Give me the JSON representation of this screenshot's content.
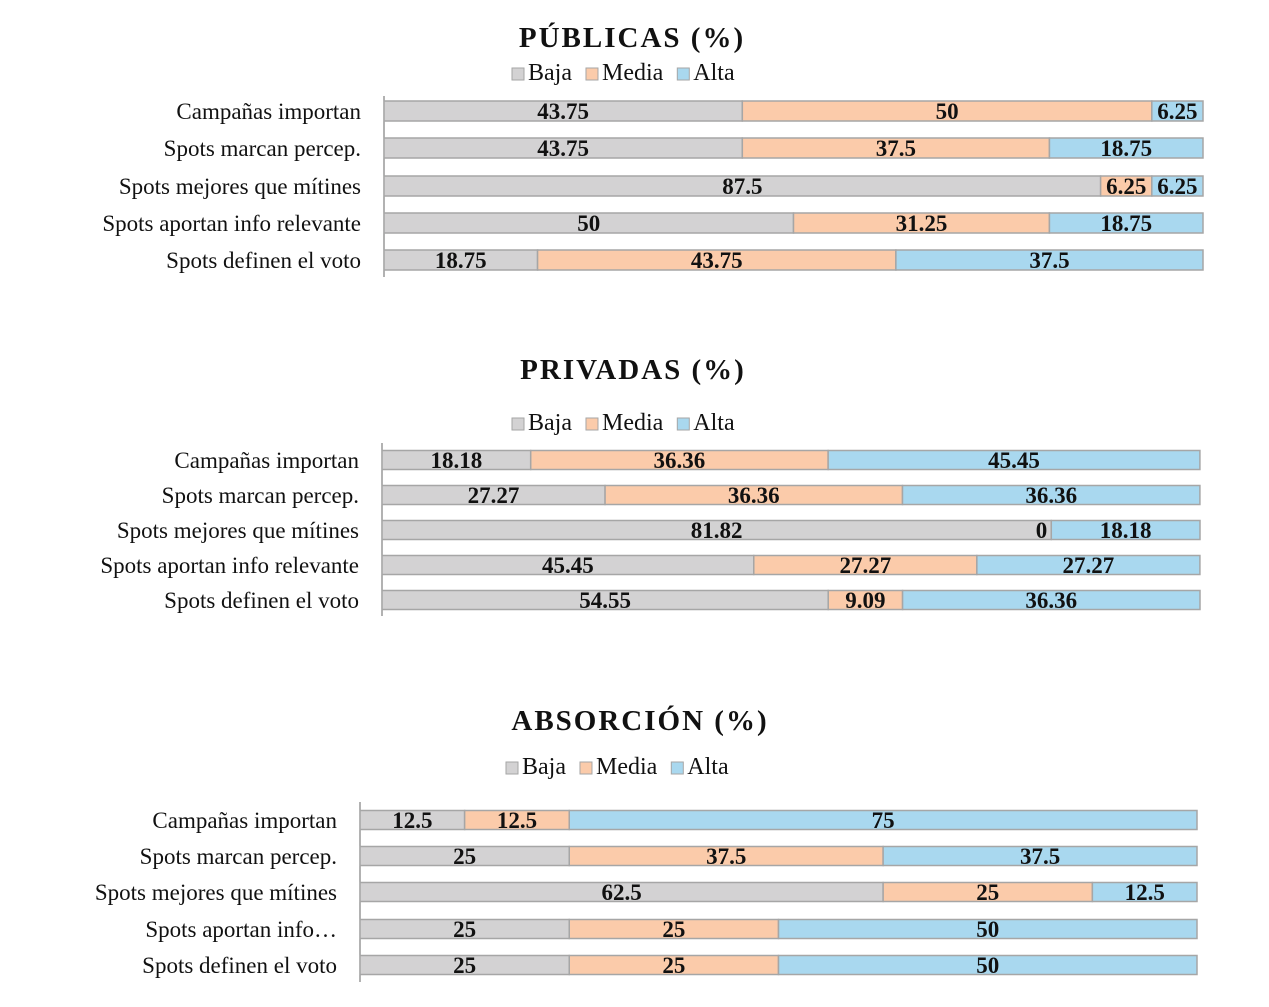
{
  "colors": {
    "Baja": "#d3d2d3",
    "Media": "#fbcbaa",
    "Alta": "#a9d8ef",
    "stroke": "#a6a6a6",
    "axis": "#7f7f7f"
  },
  "chart_data": [
    {
      "type": "bar",
      "stacked": true,
      "orientation": "horizontal",
      "title": "PÚBLICAS (%)",
      "legend": [
        "Baja",
        "Media",
        "Alta"
      ],
      "legend_position": "top",
      "categories": [
        "Campañas importan",
        "Spots marcan percep.",
        "Spots mejores que mítines",
        "Spots aportan info relevante",
        "Spots definen el voto"
      ],
      "series": [
        {
          "name": "Baja",
          "values": [
            43.75,
            43.75,
            87.5,
            50,
            18.75
          ],
          "labels": [
            "43.75",
            "43.75",
            "87.5",
            "50",
            "18.75"
          ]
        },
        {
          "name": "Media",
          "values": [
            50,
            37.5,
            6.25,
            31.25,
            43.75
          ],
          "labels": [
            "50",
            "37.5",
            "6.25",
            "31.25",
            "43.75"
          ]
        },
        {
          "name": "Alta",
          "values": [
            6.25,
            18.75,
            6.25,
            18.75,
            37.5
          ],
          "labels": [
            "6.25",
            "18.75",
            "6.25",
            "18.75",
            "37.5"
          ]
        }
      ],
      "xlim": [
        0,
        100
      ]
    },
    {
      "type": "bar",
      "stacked": true,
      "orientation": "horizontal",
      "title": "PRIVADAS (%)",
      "legend": [
        "Baja",
        "Media",
        "Alta"
      ],
      "legend_position": "top",
      "categories": [
        "Campañas importan",
        "Spots marcan percep.",
        "Spots mejores que mítines",
        "Spots aportan info relevante",
        "Spots definen el voto"
      ],
      "series": [
        {
          "name": "Baja",
          "values": [
            18.18,
            27.27,
            81.82,
            45.45,
            54.55
          ],
          "labels": [
            "18.18",
            "27.27",
            "81.82",
            "45.45",
            "54.55"
          ]
        },
        {
          "name": "Media",
          "values": [
            36.36,
            36.36,
            0,
            27.27,
            9.09
          ],
          "labels": [
            "36.36",
            "36.36",
            "0",
            "27.27",
            "9.09"
          ]
        },
        {
          "name": "Alta",
          "values": [
            45.45,
            36.36,
            18.18,
            27.27,
            36.36
          ],
          "labels": [
            "45.45",
            "36.36",
            "18.18",
            "27.27",
            "36.36"
          ]
        }
      ],
      "xlim": [
        0,
        100
      ]
    },
    {
      "type": "bar",
      "stacked": true,
      "orientation": "horizontal",
      "title": "ABSORCIÓN (%)",
      "legend": [
        "Baja",
        "Media",
        "Alta"
      ],
      "legend_position": "top",
      "categories": [
        "Campañas importan",
        "Spots marcan percep.",
        "Spots mejores que mítines",
        "Spots aportan info…",
        "Spots definen el voto"
      ],
      "series": [
        {
          "name": "Baja",
          "values": [
            12.5,
            25,
            62.5,
            25,
            25
          ],
          "labels": [
            "12.5",
            "25",
            "62.5",
            "25",
            "25"
          ]
        },
        {
          "name": "Media",
          "values": [
            12.5,
            37.5,
            25,
            25,
            25
          ],
          "labels": [
            "12.5",
            "37.5",
            "25",
            "25",
            "25"
          ]
        },
        {
          "name": "Alta",
          "values": [
            75,
            37.5,
            12.5,
            50,
            50
          ],
          "labels": [
            "75",
            "37.5",
            "12.5",
            "50",
            "50"
          ]
        }
      ],
      "xlim": [
        0,
        100
      ]
    }
  ]
}
